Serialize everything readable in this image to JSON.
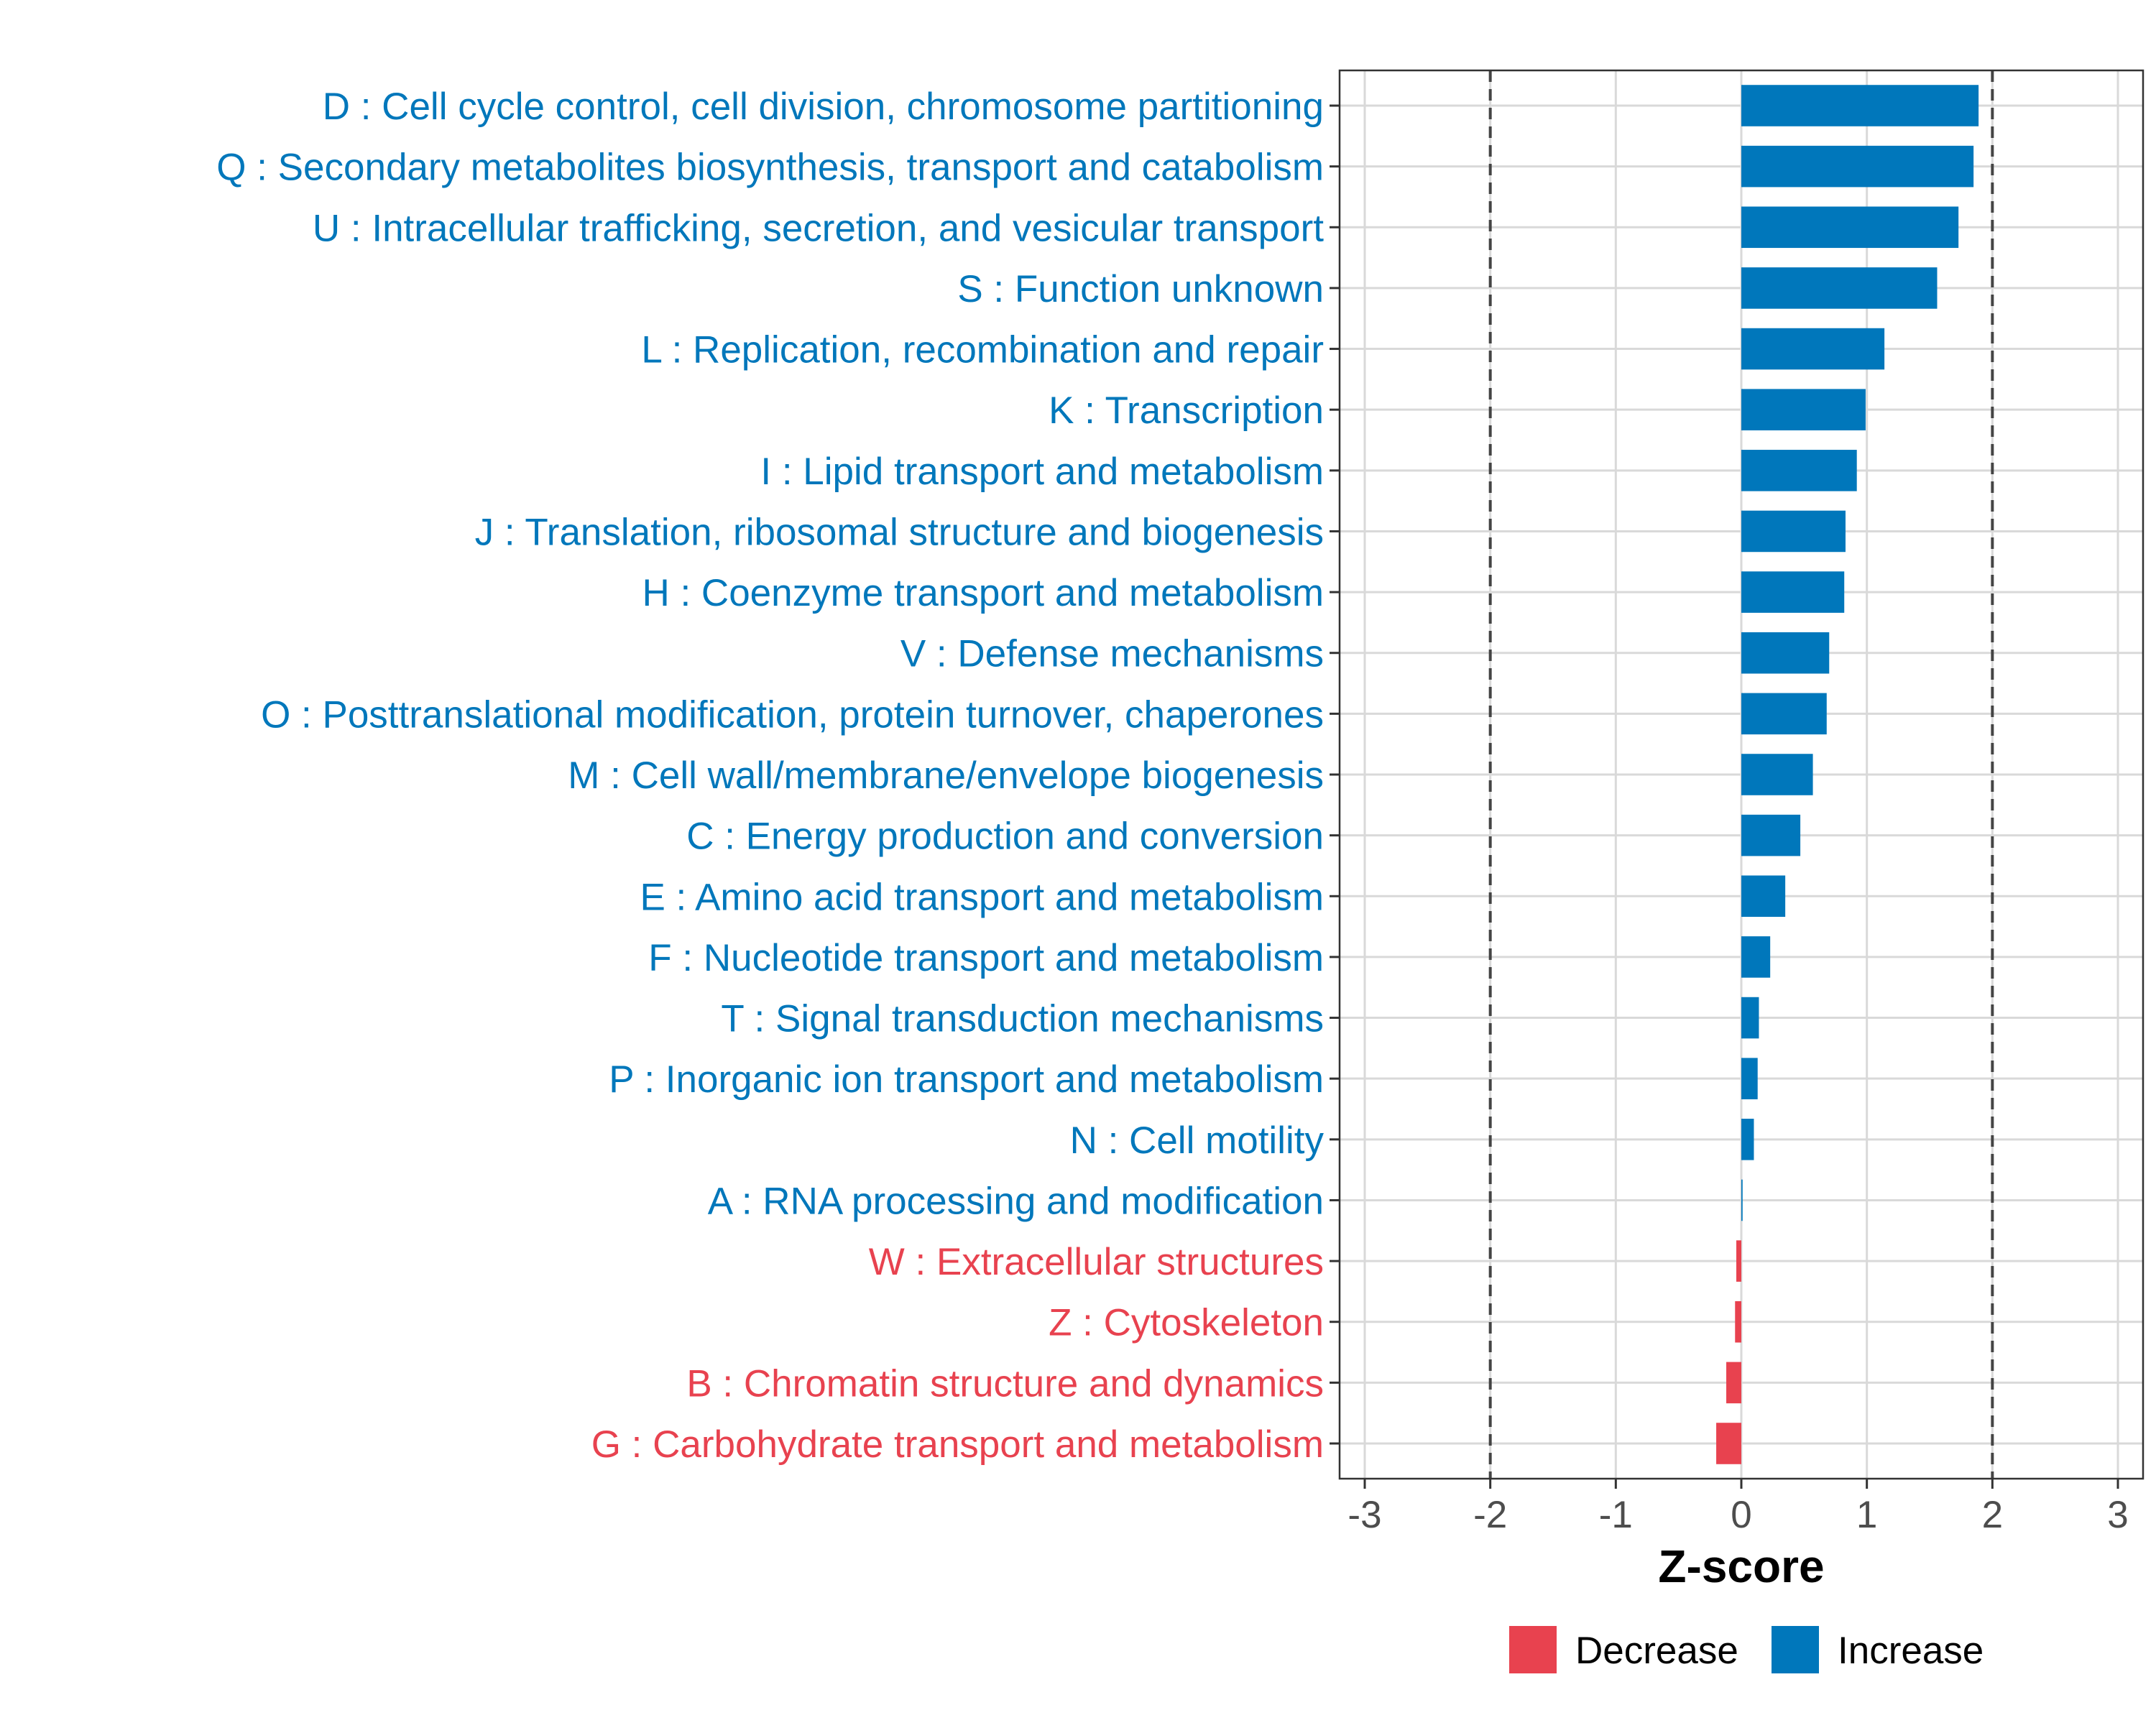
{
  "chart_data": {
    "type": "bar",
    "orientation": "horizontal",
    "xlabel": "Z-score",
    "xlim": [
      -3,
      3
    ],
    "xticks": [
      -3,
      -2,
      -1,
      0,
      1,
      2,
      3
    ],
    "xtick_labels": [
      "-3",
      "-2",
      "-1",
      "0",
      "1",
      "2",
      "3"
    ],
    "reference_lines": [
      -2,
      2
    ],
    "grid": true,
    "colors": {
      "Decrease": "#E8424F",
      "Increase": "#0077BB"
    },
    "legend": {
      "position": "bottom",
      "entries": [
        {
          "label": "Decrease",
          "color": "#E8424F"
        },
        {
          "label": "Increase",
          "color": "#0077BB"
        }
      ]
    },
    "bars": [
      {
        "label": "D : Cell cycle control, cell division, chromosome partitioning",
        "value": 1.89,
        "group": "Increase"
      },
      {
        "label": "Q : Secondary metabolites biosynthesis, transport and catabolism",
        "value": 1.85,
        "group": "Increase"
      },
      {
        "label": "U : Intracellular trafficking, secretion, and vesicular transport",
        "value": 1.73,
        "group": "Increase"
      },
      {
        "label": "S : Function unknown",
        "value": 1.56,
        "group": "Increase"
      },
      {
        "label": "L : Replication, recombination and repair",
        "value": 1.14,
        "group": "Increase"
      },
      {
        "label": "K : Transcription",
        "value": 0.99,
        "group": "Increase"
      },
      {
        "label": "I : Lipid transport and metabolism",
        "value": 0.92,
        "group": "Increase"
      },
      {
        "label": "J : Translation, ribosomal structure and biogenesis",
        "value": 0.83,
        "group": "Increase"
      },
      {
        "label": "H : Coenzyme transport and metabolism",
        "value": 0.82,
        "group": "Increase"
      },
      {
        "label": "V : Defense mechanisms",
        "value": 0.7,
        "group": "Increase"
      },
      {
        "label": "O : Posttranslational modification, protein turnover, chaperones",
        "value": 0.68,
        "group": "Increase"
      },
      {
        "label": "M : Cell wall/membrane/envelope biogenesis",
        "value": 0.57,
        "group": "Increase"
      },
      {
        "label": "C : Energy production and conversion",
        "value": 0.47,
        "group": "Increase"
      },
      {
        "label": "E : Amino acid transport and metabolism",
        "value": 0.35,
        "group": "Increase"
      },
      {
        "label": "F : Nucleotide transport and metabolism",
        "value": 0.23,
        "group": "Increase"
      },
      {
        "label": "T : Signal transduction mechanisms",
        "value": 0.14,
        "group": "Increase"
      },
      {
        "label": "P : Inorganic ion transport and metabolism",
        "value": 0.13,
        "group": "Increase"
      },
      {
        "label": "N : Cell motility",
        "value": 0.1,
        "group": "Increase"
      },
      {
        "label": "A : RNA processing and modification",
        "value": 0.01,
        "group": "Increase"
      },
      {
        "label": "W : Extracellular structures",
        "value": -0.04,
        "group": "Decrease"
      },
      {
        "label": "Z : Cytoskeleton",
        "value": -0.05,
        "group": "Decrease"
      },
      {
        "label": "B : Chromatin structure and dynamics",
        "value": -0.12,
        "group": "Decrease"
      },
      {
        "label": "G : Carbohydrate transport and metabolism",
        "value": -0.2,
        "group": "Decrease"
      }
    ]
  }
}
